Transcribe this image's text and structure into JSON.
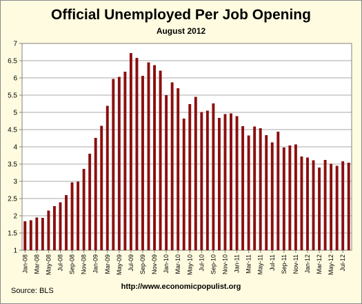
{
  "chart_data": {
    "type": "bar",
    "title": "Official Unemployed Per Job Opening",
    "subtitle": "August 2012",
    "ylim": [
      1,
      7
    ],
    "yticks": [
      "1",
      "1.5",
      "2",
      "2.5",
      "3",
      "3.5",
      "4",
      "4.5",
      "5",
      "5.5",
      "6",
      "6.5",
      "7"
    ],
    "grid": true,
    "bar_color": "#8b0f0f",
    "x_tick_labels": [
      "Jan-08",
      "Mar-08",
      "May-08",
      "Jul-08",
      "Sep-08",
      "Nov-08",
      "Jan-09",
      "Mar-09",
      "May-09",
      "Jul-09",
      "Sep-09",
      "Nov-09",
      "Jan-10",
      "Mar-10",
      "May-10",
      "Jul-10",
      "Sep-10",
      "Nov-10",
      "Jan-11",
      "Mar-11",
      "May-11",
      "Jul-11",
      "Sep-11",
      "Nov-11",
      "Jan-12",
      "Mar-12",
      "May-12",
      "Jul-12"
    ],
    "values": [
      1.84,
      1.87,
      1.95,
      1.94,
      2.15,
      2.28,
      2.39,
      2.6,
      2.97,
      2.99,
      3.36,
      3.8,
      4.26,
      4.61,
      5.19,
      5.97,
      6.03,
      6.18,
      6.72,
      6.58,
      6.06,
      6.45,
      6.37,
      6.21,
      5.5,
      5.87,
      5.7,
      4.82,
      5.24,
      5.45,
      5.01,
      5.05,
      5.26,
      4.84,
      4.95,
      4.97,
      4.89,
      4.6,
      4.33,
      4.59,
      4.54,
      4.34,
      4.13,
      4.44,
      3.98,
      4.04,
      4.07,
      3.72,
      3.69,
      3.61,
      3.4,
      3.62,
      3.51,
      3.45,
      3.58,
      3.54
    ]
  },
  "source": "Source:  BLS",
  "url": "http://www.economicpopulist.org"
}
